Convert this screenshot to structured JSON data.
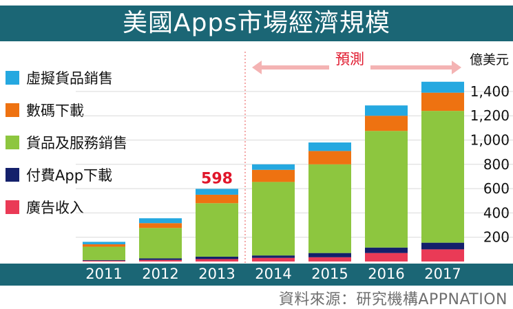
{
  "title": "美國Apps市場經濟規模",
  "unit": "億美元",
  "forecast_label": "預測",
  "source": "資料來源：研究機構APPNATION",
  "chart_data": {
    "type": "bar",
    "stacked": true,
    "categories": [
      "2011",
      "2012",
      "2013",
      "2014",
      "2015",
      "2016",
      "2017"
    ],
    "forecast_from": "2014",
    "series": [
      {
        "name": "廣告收入",
        "color": "#ea3a56",
        "values": [
          7,
          13,
          20,
          30,
          35,
          70,
          100
        ]
      },
      {
        "name": "付費App下載",
        "color": "#14206b",
        "values": [
          5,
          13,
          20,
          20,
          35,
          45,
          55
        ]
      },
      {
        "name": "貨品及服務銷售",
        "color": "#8dc63f",
        "values": [
          110,
          250,
          440,
          605,
          730,
          960,
          1085
        ]
      },
      {
        "name": "數碼下載",
        "color": "#ee7211",
        "values": [
          20,
          40,
          70,
          100,
          110,
          125,
          150
        ]
      },
      {
        "name": "虛擬貨品銷售",
        "color": "#25a8e0",
        "values": [
          20,
          40,
          48,
          45,
          70,
          85,
          90
        ]
      }
    ],
    "annotations": [
      {
        "category": "2013",
        "text": "598",
        "color": "#e0162b"
      }
    ],
    "yticks": [
      200,
      400,
      600,
      800,
      1000,
      1200,
      1400
    ],
    "ytick_labels": [
      "200",
      "400",
      "600",
      "800",
      "1,000",
      "1,200",
      "1,400"
    ],
    "ylim": [
      0,
      1520
    ],
    "legend_order": [
      "虛擬貨品銷售",
      "數碼下載",
      "貨品及服務銷售",
      "付費App下載",
      "廣告收入"
    ]
  }
}
